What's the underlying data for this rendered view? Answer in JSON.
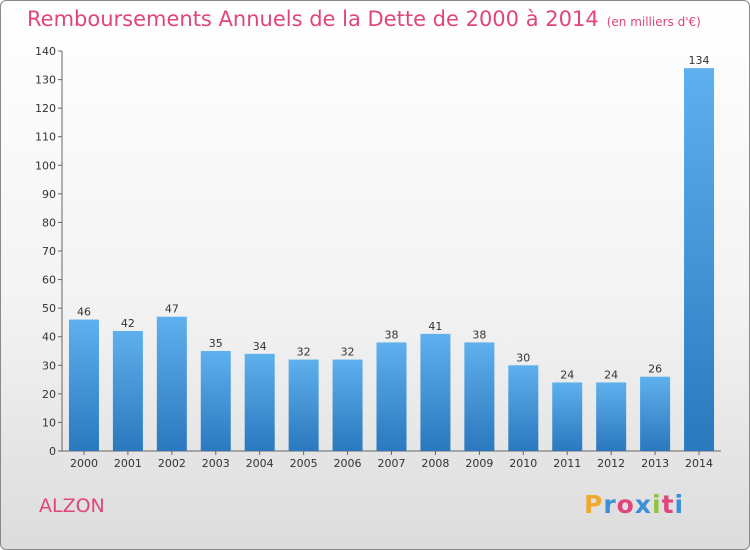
{
  "title": {
    "main": "Remboursements Annuels de la Dette de 2000 à 2014",
    "unit": "(en milliers d'€)"
  },
  "commune": "ALZON",
  "logo": {
    "letters": [
      "P",
      "r",
      "o",
      "x",
      "i",
      "t",
      "i"
    ],
    "colors": [
      "#f0a830",
      "#3a8fd8",
      "#e0457b",
      "#3a8fd8",
      "#8cc63f",
      "#e0457b",
      "#3a8fd8"
    ]
  },
  "colors": {
    "title": "#e0457b",
    "bar_light": "#5fb0ee",
    "bar_dark": "#2a78be"
  },
  "chart_data": {
    "type": "bar",
    "title": "Remboursements Annuels de la Dette de 2000 à 2014",
    "subtitle": "(en milliers d'€)",
    "categories": [
      "2000",
      "2001",
      "2002",
      "2003",
      "2004",
      "2005",
      "2006",
      "2007",
      "2008",
      "2009",
      "2010",
      "2011",
      "2012",
      "2013",
      "2014"
    ],
    "values": [
      46,
      42,
      47,
      35,
      34,
      32,
      32,
      38,
      41,
      38,
      30,
      24,
      24,
      26,
      134
    ],
    "ylim": [
      0,
      140
    ],
    "yticks": [
      0,
      10,
      20,
      30,
      40,
      50,
      60,
      70,
      80,
      90,
      100,
      110,
      120,
      130,
      140
    ],
    "grid": false,
    "legend": "none"
  }
}
